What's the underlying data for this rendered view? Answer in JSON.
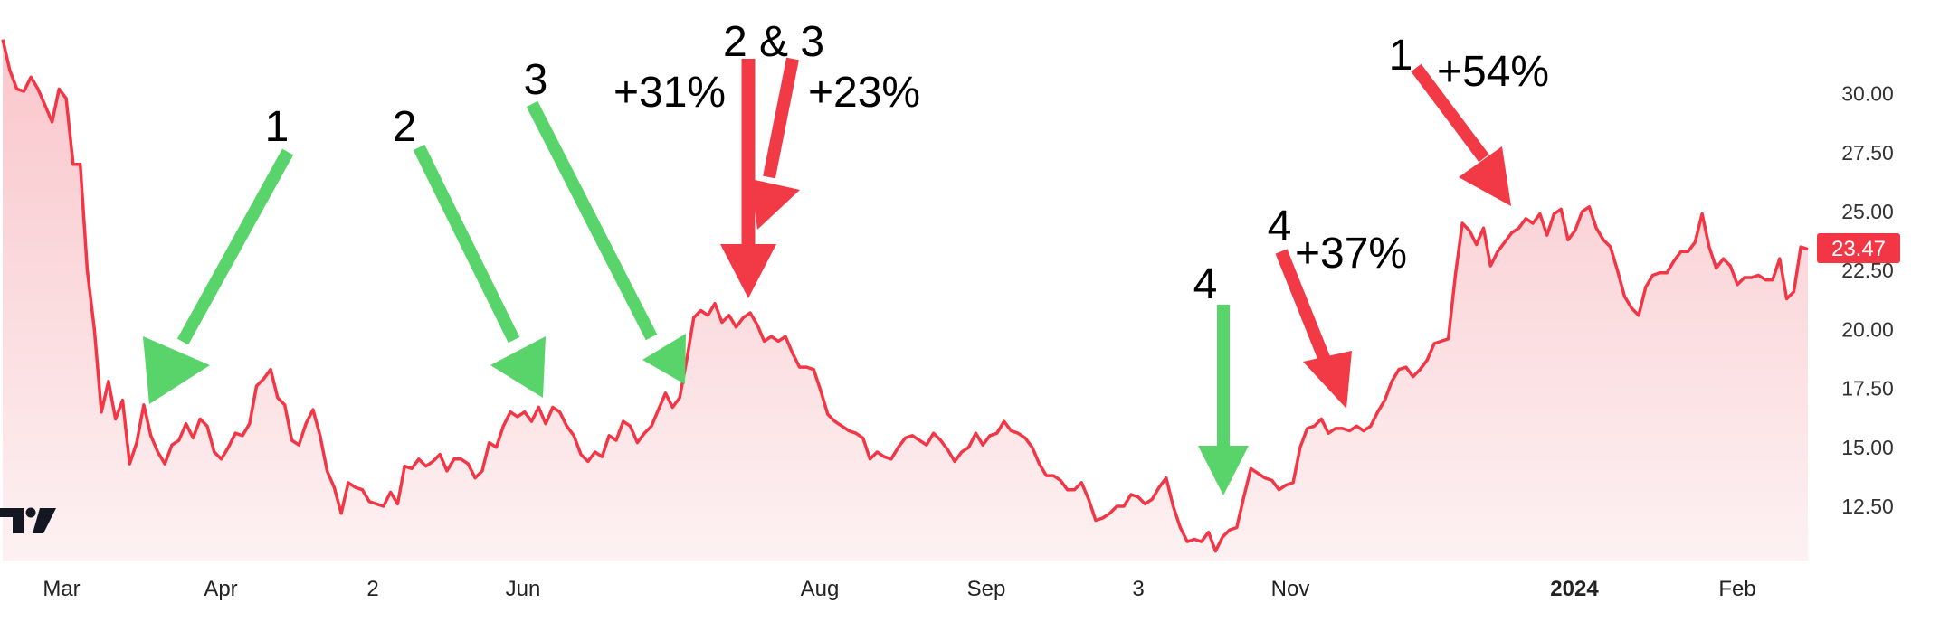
{
  "chart_data": {
    "type": "area",
    "title": "",
    "xlabel": "",
    "ylabel": "",
    "ylim": [
      9.5,
      32.5
    ],
    "y_ticks": [
      "12.50",
      "15.00",
      "17.50",
      "20.00",
      "22.50",
      "25.00",
      "27.50",
      "30.00"
    ],
    "x_ticks": [
      {
        "label": "Mar",
        "bold": false
      },
      {
        "label": "Apr",
        "bold": false
      },
      {
        "label": "2",
        "bold": false
      },
      {
        "label": "Jun",
        "bold": false
      },
      {
        "label": "Aug",
        "bold": false
      },
      {
        "label": "Sep",
        "bold": false
      },
      {
        "label": "3",
        "bold": false
      },
      {
        "label": "Nov",
        "bold": false
      },
      {
        "label": "2024",
        "bold": true
      },
      {
        "label": "Feb",
        "bold": false
      }
    ],
    "last_price": "23.47",
    "grid": false,
    "series": [
      {
        "values": [
          32.3,
          31.0,
          30.2,
          30.1,
          30.7,
          30.2,
          29.5,
          28.8,
          30.2,
          29.8,
          27.0,
          27.0,
          22.5,
          20.0,
          16.5,
          17.8,
          16.2,
          17.0,
          14.3,
          15.2,
          16.8,
          15.5,
          14.8,
          14.3,
          15.1,
          15.3,
          16.0,
          15.4,
          16.2,
          15.9,
          14.8,
          14.5,
          15.0,
          15.6,
          15.5,
          16.0,
          17.6,
          17.9,
          18.3,
          17.1,
          16.8,
          15.3,
          15.1,
          16.0,
          16.6,
          15.5,
          14.0,
          13.3,
          12.2,
          13.5,
          13.3,
          13.2,
          12.7,
          12.6,
          12.5,
          13.1,
          12.6,
          14.2,
          14.1,
          14.5,
          14.2,
          14.4,
          14.7,
          14.0,
          14.5,
          14.5,
          14.3,
          13.7,
          14.0,
          15.2,
          15.0,
          15.9,
          16.5,
          16.3,
          16.5,
          16.1,
          16.7,
          16.0,
          16.7,
          16.5,
          15.9,
          15.5,
          14.7,
          14.4,
          14.8,
          14.6,
          15.5,
          15.3,
          16.1,
          15.9,
          15.2,
          15.6,
          15.9,
          16.6,
          17.3,
          16.7,
          17.1,
          18.7,
          20.5,
          20.8,
          20.6,
          21.1,
          20.3,
          20.6,
          20.1,
          20.5,
          20.7,
          20.2,
          19.5,
          19.7,
          19.5,
          19.7,
          19.0,
          18.4,
          18.4,
          18.3,
          17.4,
          16.4,
          16.1,
          15.9,
          15.7,
          15.6,
          15.4,
          14.5,
          14.8,
          14.6,
          14.5,
          15.0,
          15.4,
          15.5,
          15.3,
          15.1,
          15.6,
          15.3,
          14.9,
          14.4,
          14.8,
          15.0,
          15.6,
          15.1,
          15.5,
          15.6,
          16.1,
          15.7,
          15.6,
          15.4,
          15.0,
          14.3,
          13.8,
          13.8,
          13.6,
          13.2,
          13.2,
          13.5,
          12.8,
          11.9,
          12.0,
          12.2,
          12.5,
          12.5,
          13.0,
          12.9,
          12.6,
          12.8,
          13.3,
          13.7,
          12.5,
          11.6,
          11.0,
          11.1,
          11.0,
          11.4,
          10.6,
          11.2,
          11.5,
          11.6,
          12.9,
          14.1,
          13.9,
          13.7,
          13.6,
          13.2,
          13.4,
          13.5,
          15.0,
          15.8,
          15.9,
          16.2,
          15.6,
          15.8,
          15.8,
          15.7,
          15.9,
          15.7,
          15.9,
          16.5,
          17.0,
          17.8,
          18.3,
          18.4,
          18.0,
          18.3,
          18.7,
          19.4,
          19.5,
          19.6,
          22.3,
          24.5,
          24.2,
          23.6,
          24.3,
          22.7,
          23.3,
          23.7,
          24.1,
          24.3,
          24.7,
          24.5,
          24.9,
          24.0,
          24.9,
          25.1,
          23.8,
          24.2,
          25.0,
          25.2,
          24.3,
          23.8,
          23.5,
          22.5,
          21.4,
          20.9,
          20.6,
          21.8,
          22.3,
          22.4,
          22.4,
          22.9,
          23.3,
          23.3,
          23.7,
          24.9,
          23.5,
          22.6,
          23.0,
          22.7,
          21.9,
          22.2,
          22.2,
          22.3,
          22.1,
          22.1,
          23.0,
          21.3,
          21.6,
          23.5,
          23.4
        ]
      }
    ],
    "annotations": [
      {
        "label": "1",
        "color": "#58d46a",
        "note": ""
      },
      {
        "label": "2",
        "color": "#58d46a",
        "note": ""
      },
      {
        "label": "3",
        "color": "#58d46a",
        "note": ""
      },
      {
        "label": "2 & 3",
        "color": "#f23a47",
        "note": "+31%"
      },
      {
        "label": "",
        "color": "#f23a47",
        "note": "+23%"
      },
      {
        "label": "4",
        "color": "#58d46a",
        "note": ""
      },
      {
        "label": "4",
        "color": "#f23a47",
        "note": "+37%"
      },
      {
        "label": "1",
        "color": "#f23a47",
        "note": "+54%"
      }
    ]
  },
  "colors": {
    "line": "#f23645",
    "area_top": "#f9c6cb",
    "area_bottom": "#fdf1f2",
    "green_arrow": "#58d46a",
    "red_arrow": "#f23a47",
    "badge": "#f23645"
  },
  "logo_icon": "tradingview-logo-icon"
}
